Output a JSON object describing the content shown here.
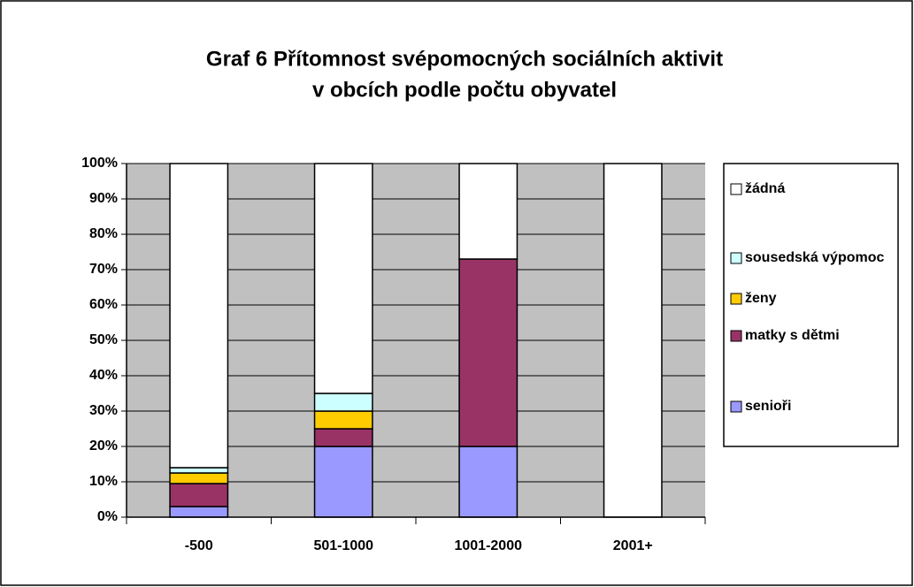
{
  "chart_data": {
    "type": "stacked_bar_100",
    "title": [
      "Graf 6 Přítomnost svépomocných sociálních aktivit",
      "v obcích podle počtu obyvatel"
    ],
    "categories": [
      "-500",
      "501-1000",
      "1001-2000",
      "2001+"
    ],
    "series": [
      {
        "name": "senioři",
        "color": "#9999ff",
        "values": [
          3,
          20,
          20,
          0
        ]
      },
      {
        "name": "matky s dětmi",
        "color": "#993366",
        "values": [
          6.5,
          5,
          53,
          0
        ]
      },
      {
        "name": "ženy",
        "color": "#ffcc00",
        "values": [
          3,
          5,
          0,
          0
        ]
      },
      {
        "name": "sousedská výpomoc",
        "color": "#ccffff",
        "values": [
          1.5,
          5,
          0,
          0
        ]
      },
      {
        "name": "žádná",
        "color": "#ffffff",
        "values": [
          86,
          65,
          27,
          100
        ]
      }
    ],
    "ylim": [
      0,
      100
    ],
    "yticks": [
      {
        "value": 0,
        "label": "0%"
      },
      {
        "value": 10,
        "label": "10%"
      },
      {
        "value": 20,
        "label": "20%"
      },
      {
        "value": 30,
        "label": "30%"
      },
      {
        "value": 40,
        "label": "40%"
      },
      {
        "value": 50,
        "label": "50%"
      },
      {
        "value": 60,
        "label": "60%"
      },
      {
        "value": 70,
        "label": "70%"
      },
      {
        "value": 80,
        "label": "80%"
      },
      {
        "value": 90,
        "label": "90%"
      },
      {
        "value": 100,
        "label": "100%"
      }
    ],
    "grid": true,
    "plot_background": "#c0c0c0",
    "legend": "right"
  }
}
